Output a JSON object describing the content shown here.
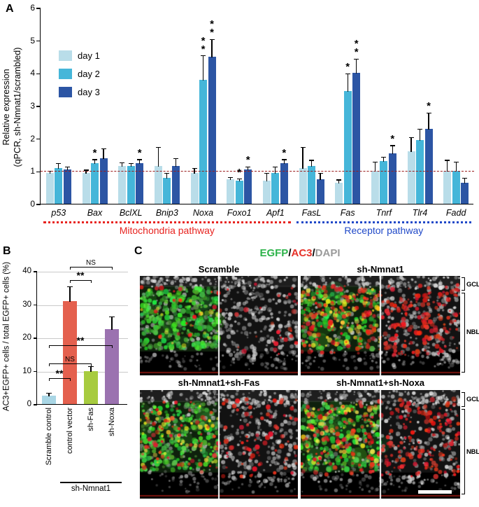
{
  "figure_labels": {
    "a": "A",
    "b": "B",
    "c": "C"
  },
  "chart_data": [
    {
      "id": "panel-a-qpcr",
      "type": "bar",
      "ylabel_line1": "Relative expression",
      "ylabel_line2": "(qPCR, sh-Nmnat1/scrambled)",
      "ylim": [
        0,
        6
      ],
      "yticks": [
        0,
        1,
        2,
        3,
        4,
        5,
        6
      ],
      "categories": [
        "p53",
        "Bax",
        "BclXL",
        "Bnip3",
        "Noxa",
        "Foxo1",
        "Apf1",
        "FasL",
        "Fas",
        "Tnrf",
        "Tlr4",
        "Fadd"
      ],
      "series": [
        {
          "name": "day 1",
          "color": "#b9dde9",
          "values": [
            0.95,
            0.95,
            1.15,
            1.15,
            0.95,
            0.75,
            0.7,
            1.1,
            0.65,
            1.0,
            1.6,
            1.0
          ],
          "errors": [
            0.07,
            0.1,
            0.12,
            0.6,
            0.15,
            0.08,
            0.25,
            0.65,
            0.1,
            0.3,
            0.45,
            0.35
          ]
        },
        {
          "name": "day 2",
          "color": "#45b6d9",
          "values": [
            1.1,
            1.25,
            1.15,
            0.8,
            3.8,
            0.7,
            0.95,
            1.15,
            3.45,
            1.3,
            1.95,
            1.0
          ],
          "errors": [
            0.15,
            0.12,
            0.1,
            0.15,
            0.75,
            0.08,
            0.2,
            0.2,
            0.55,
            0.15,
            0.35,
            0.3
          ]
        },
        {
          "name": "day 3",
          "color": "#2c55a4",
          "values": [
            1.05,
            1.4,
            1.25,
            1.15,
            4.5,
            1.05,
            1.25,
            0.75,
            4.0,
            1.55,
            2.3,
            0.65
          ],
          "errors": [
            0.1,
            0.3,
            0.12,
            0.25,
            0.55,
            0.1,
            0.12,
            0.2,
            0.45,
            0.25,
            0.5,
            0.15
          ]
        }
      ],
      "reference_line": {
        "y": 1,
        "color": "#9b1c1c"
      },
      "significance": [
        {
          "category": "Bax",
          "series": "day 2",
          "label": "*"
        },
        {
          "category": "BclXL",
          "series": "day 3",
          "label": "*"
        },
        {
          "category": "Noxa",
          "series": "day 2",
          "label": "**"
        },
        {
          "category": "Noxa",
          "series": "day 3",
          "label": "**"
        },
        {
          "category": "Foxo1",
          "series": "day 2",
          "label": "*"
        },
        {
          "category": "Foxo1",
          "series": "day 3",
          "label": "*"
        },
        {
          "category": "Apf1",
          "series": "day 3",
          "label": "*"
        },
        {
          "category": "Fas",
          "series": "day 2",
          "label": "*"
        },
        {
          "category": "Fas",
          "series": "day 3",
          "label": "**"
        },
        {
          "category": "Tnrf",
          "series": "day 3",
          "label": "*"
        },
        {
          "category": "Tlr4",
          "series": "day 3",
          "label": "*"
        }
      ],
      "pathways": [
        {
          "label": "Mitochondria pathway",
          "color": "#e8231f",
          "from": "p53",
          "to": "Apf1"
        },
        {
          "label": "Receptor pathway",
          "color": "#2049c8",
          "from": "FasL",
          "to": "Fadd"
        }
      ]
    },
    {
      "id": "panel-b-ac3",
      "type": "bar",
      "ylabel": "AC3+EGFP+ cells / total EGFP+ cells (%)",
      "ylim": [
        0,
        40
      ],
      "yticks": [
        0,
        10,
        20,
        30,
        40
      ],
      "categories": [
        "Scramble control",
        "control vector",
        "sh-Fas",
        "sh-Noxa"
      ],
      "values": [
        2.5,
        31,
        10,
        22.5
      ],
      "errors": [
        1,
        4.5,
        1.5,
        4
      ],
      "colors": [
        "#a9d6e5",
        "#e4604e",
        "#a7cb3f",
        "#9b72b0"
      ],
      "group_bracket": {
        "label": "sh-Nmnat1",
        "from": "control vector",
        "to": "sh-Noxa"
      },
      "comparisons": [
        {
          "a": "Scramble control",
          "b": "control vector",
          "label": "**"
        },
        {
          "a": "Scramble control",
          "b": "sh-Fas",
          "label": "NS"
        },
        {
          "a": "Scramble control",
          "b": "sh-Noxa",
          "label": "**"
        },
        {
          "a": "control vector",
          "b": "sh-Fas",
          "label": "**"
        },
        {
          "a": "control vector",
          "b": "sh-Noxa",
          "label": "NS"
        }
      ]
    }
  ],
  "panel_c": {
    "header": [
      {
        "text": "EGFP",
        "color": "#2db34a"
      },
      {
        "text": "/",
        "color": "#000000"
      },
      {
        "text": "AC3",
        "color": "#e63229"
      },
      {
        "text": "/",
        "color": "#000000"
      },
      {
        "text": "DAPI",
        "color": "#9a9a9a"
      }
    ],
    "panels": [
      {
        "title": "Scramble"
      },
      {
        "title": "sh-Nmnat1"
      },
      {
        "title": "sh-Nmnat1+sh-Fas"
      },
      {
        "title": "sh-Nmnat1+sh-Noxa"
      }
    ],
    "layer_labels": [
      "GCL",
      "NBL"
    ]
  }
}
